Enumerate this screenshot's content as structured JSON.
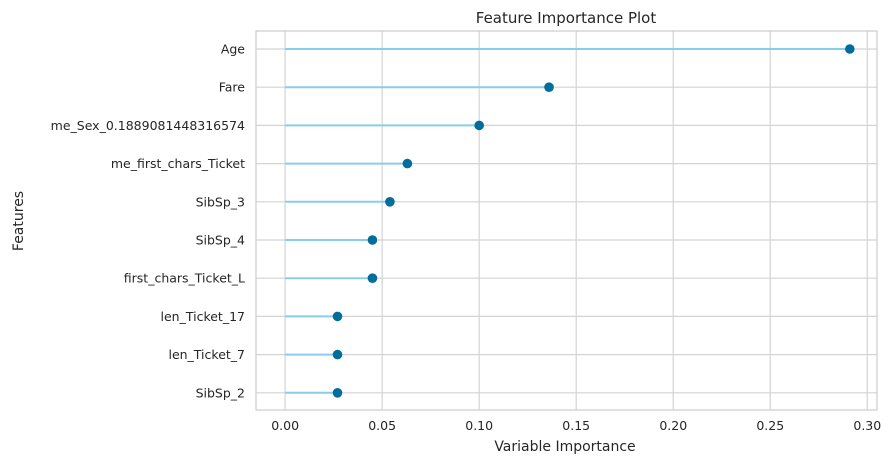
{
  "chart_data": {
    "type": "lollipop",
    "title": "Feature Importance Plot",
    "xlabel": "Variable Importance",
    "ylabel": "Features",
    "xlim": [
      -0.015,
      0.305
    ],
    "xticks": [
      0.0,
      0.05,
      0.1,
      0.15,
      0.2,
      0.25,
      0.3
    ],
    "xtick_labels": [
      "0.00",
      "0.05",
      "0.10",
      "0.15",
      "0.20",
      "0.25",
      "0.30"
    ],
    "grid": true,
    "features": [
      "Age",
      "Fare",
      "me_Sex_0.1889081448316574",
      "me_first_chars_Ticket",
      "SibSp_3",
      "SibSp_4",
      "first_chars_Ticket_L",
      "len_Ticket_17",
      "len_Ticket_7",
      "SibSp_2"
    ],
    "values": [
      0.291,
      0.136,
      0.1,
      0.063,
      0.054,
      0.045,
      0.045,
      0.027,
      0.027,
      0.027
    ],
    "colors": {
      "stem": "#87ceeb",
      "marker": "#006d9c",
      "grid": "#d4d4d4",
      "frame": "#cccccc"
    }
  }
}
